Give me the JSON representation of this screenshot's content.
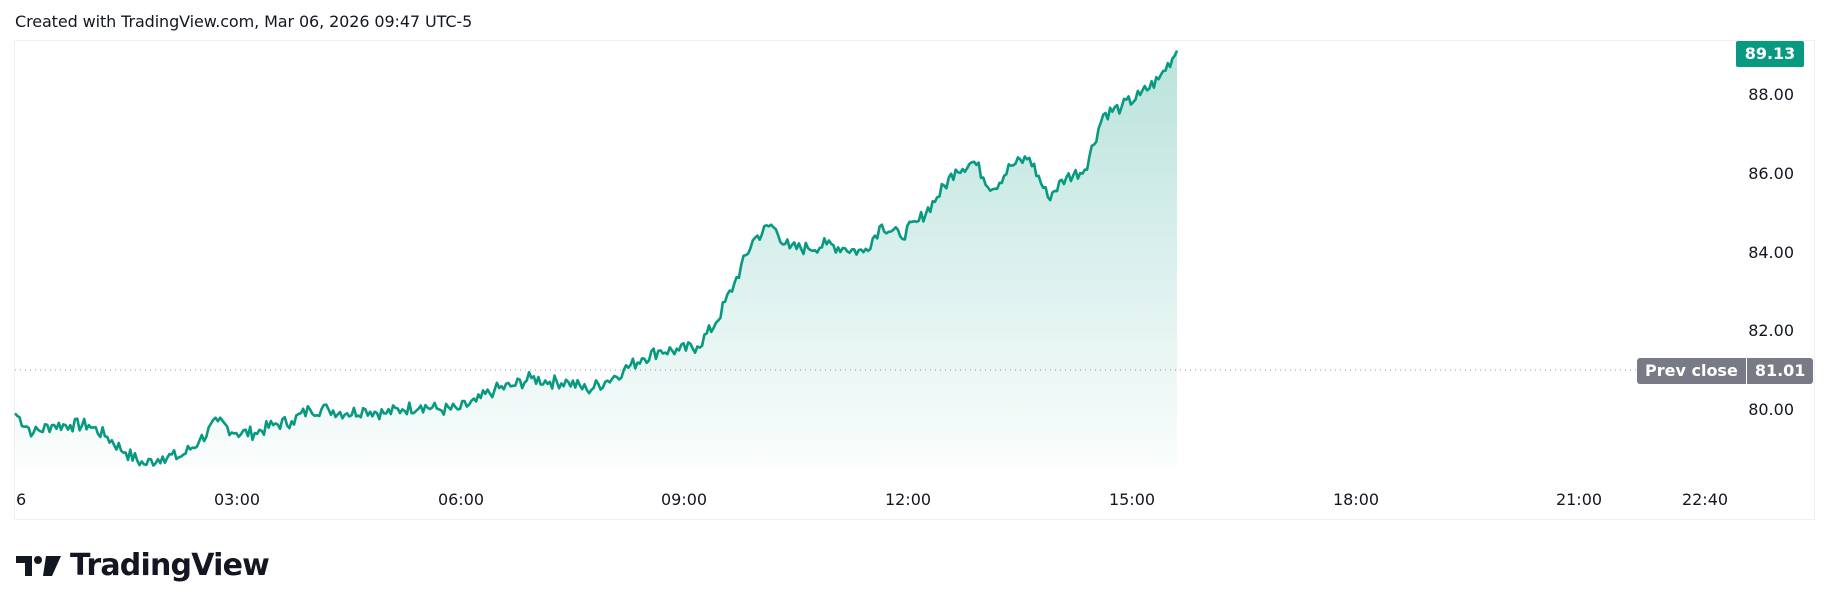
{
  "header": {
    "caption": "Created with TradingView.com, Mar 06, 2026 09:47 UTC-5"
  },
  "price_axis": {
    "ticks": [
      "88.00",
      "86.00",
      "84.00",
      "82.00",
      "80.00"
    ],
    "last_price": "89.13",
    "prev_close_label": "Prev close",
    "prev_close_value": "81.01"
  },
  "time_axis": {
    "ticks": [
      "6",
      "03:00",
      "06:00",
      "09:00",
      "12:00",
      "15:00",
      "18:00",
      "21:00",
      "22:40"
    ]
  },
  "footer": {
    "brand": "TradingView"
  },
  "colors": {
    "line": "#089981",
    "fill_top": "#089981",
    "last_price_badge": "#089981",
    "prev_close_badge": "#787b86",
    "prev_close_line": "#9598a1"
  },
  "chart_data": {
    "type": "area",
    "title": "",
    "xlabel": "",
    "ylabel": "",
    "x": [
      "00:00",
      "00:15",
      "00:30",
      "00:45",
      "01:00",
      "01:15",
      "01:30",
      "01:45",
      "02:00",
      "02:15",
      "02:30",
      "02:45",
      "03:00",
      "03:15",
      "03:30",
      "03:45",
      "04:00",
      "04:15",
      "04:30",
      "04:45",
      "05:00",
      "05:15",
      "05:30",
      "05:45",
      "06:00",
      "06:15",
      "06:30",
      "06:45",
      "07:00",
      "07:15",
      "07:30",
      "07:45",
      "08:00",
      "08:15",
      "08:30",
      "08:45",
      "09:00",
      "09:15",
      "09:30",
      "09:45",
      "10:00",
      "10:15",
      "10:30",
      "10:45",
      "11:00",
      "11:15",
      "11:30",
      "11:45",
      "12:00",
      "12:15",
      "12:30",
      "12:45",
      "13:00",
      "13:15",
      "13:30",
      "13:45",
      "14:00",
      "14:15",
      "14:30",
      "14:45",
      "15:00",
      "15:15",
      "15:30",
      "15:40"
    ],
    "series": [
      {
        "name": "Price",
        "values": [
          79.9,
          79.4,
          79.6,
          79.6,
          79.6,
          79.3,
          78.9,
          78.6,
          78.8,
          78.8,
          79.2,
          79.7,
          79.4,
          79.4,
          79.6,
          79.7,
          80.0,
          80.0,
          79.9,
          80.0,
          79.9,
          80.0,
          80.1,
          80.0,
          80.0,
          80.2,
          80.5,
          80.6,
          80.8,
          80.7,
          80.7,
          80.5,
          80.7,
          81.0,
          81.3,
          81.5,
          81.5,
          81.6,
          82.2,
          83.2,
          84.3,
          84.7,
          84.1,
          84.1,
          84.2,
          84.1,
          84.0,
          84.7,
          84.4,
          84.8,
          85.4,
          86.1,
          86.3,
          85.6,
          86.2,
          86.4,
          85.4,
          85.9,
          86.1,
          87.5,
          87.7,
          88.0,
          88.4,
          89.13
        ]
      }
    ],
    "prev_close": 81.01,
    "last_value": 89.13,
    "x_ticks": [
      "6",
      "03:00",
      "06:00",
      "09:00",
      "12:00",
      "15:00",
      "18:00",
      "21:00",
      "22:40"
    ],
    "y_ticks": [
      80,
      82,
      84,
      86,
      88
    ],
    "ylim": [
      78.4,
      89.5
    ],
    "grid": false,
    "legend": "none"
  }
}
